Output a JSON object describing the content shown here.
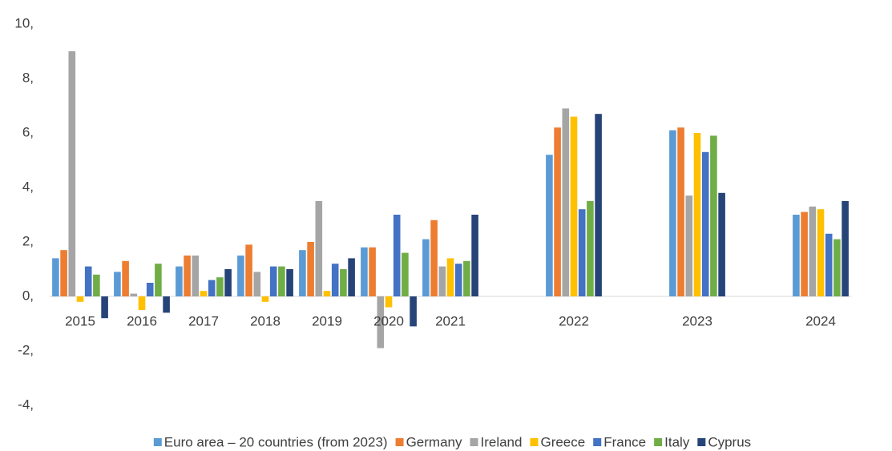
{
  "chart_data": {
    "type": "bar",
    "categories": [
      "2015",
      "2016",
      "2017",
      "2018",
      "2019",
      "2020",
      "2021",
      null,
      "2022",
      null,
      "2023",
      null,
      "2024"
    ],
    "series": [
      {
        "name": "Euro area – 20 countries (from 2023)",
        "color": "#5b9bd5",
        "values": [
          1.4,
          0.9,
          1.1,
          1.5,
          1.7,
          1.8,
          2.1,
          null,
          5.2,
          null,
          6.1,
          null,
          3.0
        ]
      },
      {
        "name": "Germany",
        "color": "#ed7d31",
        "values": [
          1.7,
          1.3,
          1.5,
          1.9,
          2.0,
          1.8,
          2.8,
          null,
          6.2,
          null,
          6.2,
          null,
          3.1
        ]
      },
      {
        "name": "Ireland",
        "color": "#a5a5a5",
        "values": [
          9.0,
          0.1,
          1.5,
          0.9,
          3.5,
          -1.9,
          1.1,
          null,
          6.9,
          null,
          3.7,
          null,
          3.3
        ]
      },
      {
        "name": "Greece",
        "color": "#ffc000",
        "values": [
          -0.2,
          -0.5,
          0.2,
          -0.2,
          0.2,
          -0.4,
          1.4,
          null,
          6.6,
          null,
          6.0,
          null,
          3.2
        ]
      },
      {
        "name": "France",
        "color": "#4472c4",
        "values": [
          1.1,
          0.5,
          0.6,
          1.1,
          1.2,
          3.0,
          1.2,
          null,
          3.2,
          null,
          5.3,
          null,
          2.3
        ]
      },
      {
        "name": "Italy",
        "color": "#70ad47",
        "values": [
          0.8,
          1.2,
          0.7,
          1.1,
          1.0,
          1.6,
          1.3,
          null,
          3.5,
          null,
          5.9,
          null,
          2.1
        ]
      },
      {
        "name": "Cyprus",
        "color": "#264478",
        "values": [
          -0.8,
          -0.6,
          1.0,
          1.0,
          1.4,
          -1.1,
          3.0,
          null,
          6.7,
          null,
          3.8,
          null,
          3.5
        ]
      }
    ],
    "ylim": [
      -4,
      10
    ],
    "yticks": [
      {
        "value": -4,
        "label": "-4,"
      },
      {
        "value": -2,
        "label": "-2,"
      },
      {
        "value": 0,
        "label": "0,"
      },
      {
        "value": 2,
        "label": "2,"
      },
      {
        "value": 4,
        "label": "4,"
      },
      {
        "value": 6,
        "label": "6,"
      },
      {
        "value": 8,
        "label": "8,"
      },
      {
        "value": 10,
        "label": "10,"
      }
    ],
    "grid": false,
    "legend": "bottom"
  }
}
